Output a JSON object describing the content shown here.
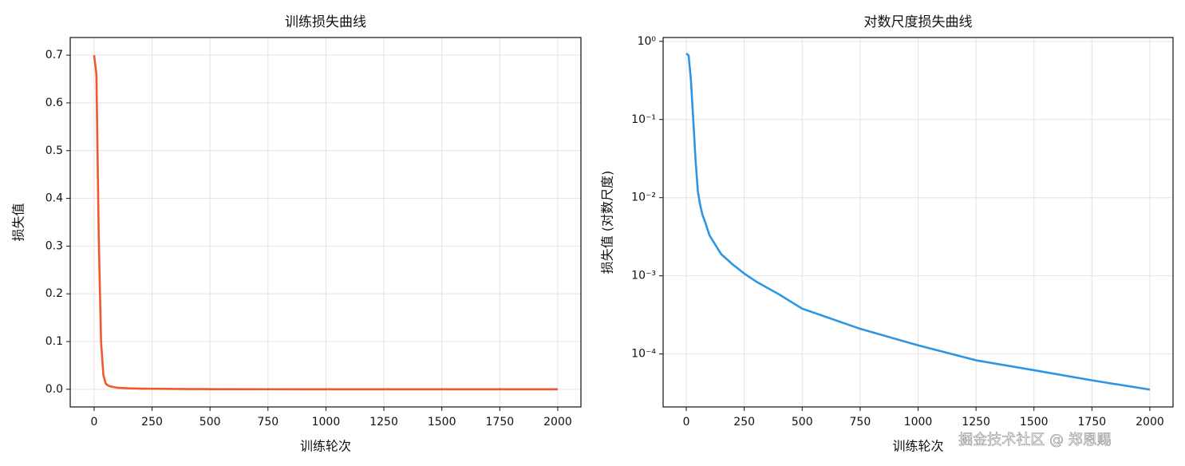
{
  "chart_data": [
    {
      "type": "line",
      "title": "训练损失曲线",
      "xlabel": "训练轮次",
      "ylabel": "损失值",
      "x": [
        0,
        10,
        20,
        30,
        40,
        50,
        60,
        70,
        80,
        100,
        150,
        200,
        250,
        300,
        400,
        500,
        750,
        1000,
        1250,
        1500,
        1750,
        2000
      ],
      "values": [
        0.7,
        0.66,
        0.32,
        0.1,
        0.03,
        0.012,
        0.008,
        0.006,
        0.005,
        0.0033,
        0.0019,
        0.0014,
        0.00107,
        0.00085,
        0.00058,
        0.00038,
        0.00021,
        0.000129,
        8.3e-05,
        6.2e-05,
        4.6e-05,
        3.5e-05
      ],
      "color": "#ee5a2b",
      "log_y": false,
      "grid": true,
      "xlim": [
        -103,
        2100
      ],
      "ylim": [
        -0.037,
        0.737
      ],
      "xticks": [
        0,
        250,
        500,
        750,
        1000,
        1250,
        1500,
        1750,
        2000
      ],
      "yticks": [
        {
          "value": 0,
          "label": "0.0"
        },
        {
          "value": 0.1,
          "label": "0.1"
        },
        {
          "value": 0.2,
          "label": "0.2"
        },
        {
          "value": 0.3,
          "label": "0.3"
        },
        {
          "value": 0.4,
          "label": "0.4"
        },
        {
          "value": 0.5,
          "label": "0.5"
        },
        {
          "value": 0.6,
          "label": "0.6"
        },
        {
          "value": 0.7,
          "label": "0.7"
        }
      ]
    },
    {
      "type": "line",
      "title": "对数尺度损失曲线",
      "xlabel": "训练轮次",
      "ylabel": "损失值 (对数尺度)",
      "x": [
        0,
        10,
        20,
        30,
        40,
        50,
        60,
        70,
        80,
        100,
        150,
        200,
        250,
        300,
        400,
        500,
        750,
        1000,
        1250,
        1500,
        1750,
        2000
      ],
      "values": [
        0.7,
        0.66,
        0.32,
        0.1,
        0.03,
        0.012,
        0.008,
        0.006,
        0.005,
        0.0033,
        0.0019,
        0.0014,
        0.00107,
        0.00085,
        0.00058,
        0.00038,
        0.00021,
        0.000129,
        8.3e-05,
        6.2e-05,
        4.6e-05,
        3.5e-05
      ],
      "color": "#2b95e6",
      "log_y": true,
      "grid": true,
      "xlim": [
        -100,
        2100
      ],
      "ylim": [
        2.1e-05,
        1.12
      ],
      "xticks": [
        0,
        250,
        500,
        750,
        1000,
        1250,
        1500,
        1750,
        2000
      ],
      "yticks": [
        {
          "value": 1,
          "label": "10⁰"
        },
        {
          "value": 0.1,
          "label": "10⁻¹"
        },
        {
          "value": 0.01,
          "label": "10⁻²"
        },
        {
          "value": 0.001,
          "label": "10⁻³"
        },
        {
          "value": 0.0001,
          "label": "10⁻⁴"
        }
      ]
    }
  ],
  "watermark": "掘金技术社区 @ 郑恩赐"
}
